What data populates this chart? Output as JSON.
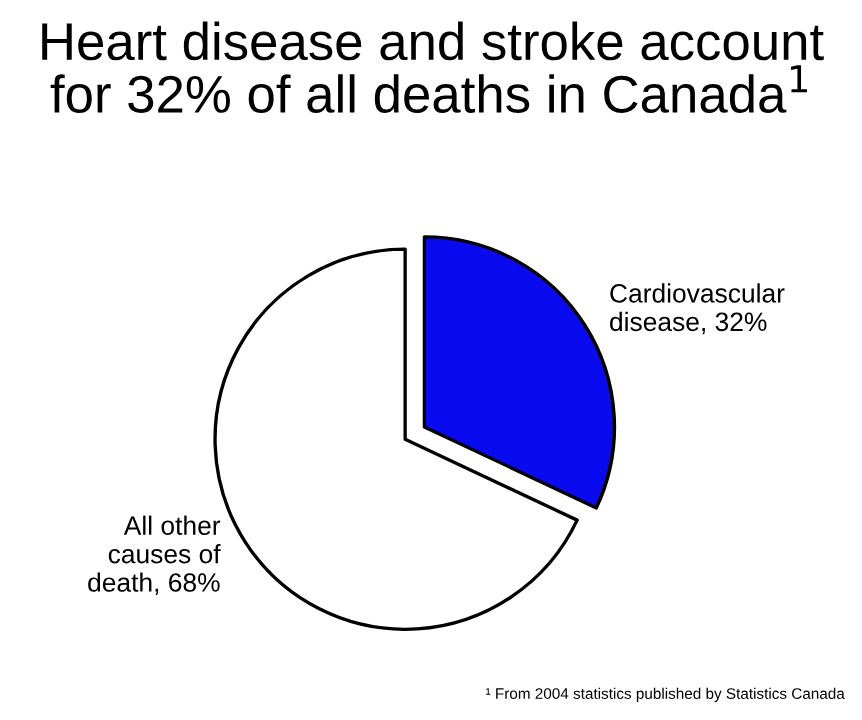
{
  "chart_data": {
    "type": "pie",
    "title": "Heart disease and stroke account\nfor 32% of all deaths in Canada$^{1}$",
    "categories": [
      "Cardiovascular\ndisease, 32%",
      "All other\ncauses of\ndeath, 68%"
    ],
    "values": [
      32,
      68
    ],
    "colors": [
      "#0a0af0",
      "#ffffff"
    ],
    "annotations": [
      "¹ From 2004 statistics published by Statistics Canada"
    ]
  }
}
